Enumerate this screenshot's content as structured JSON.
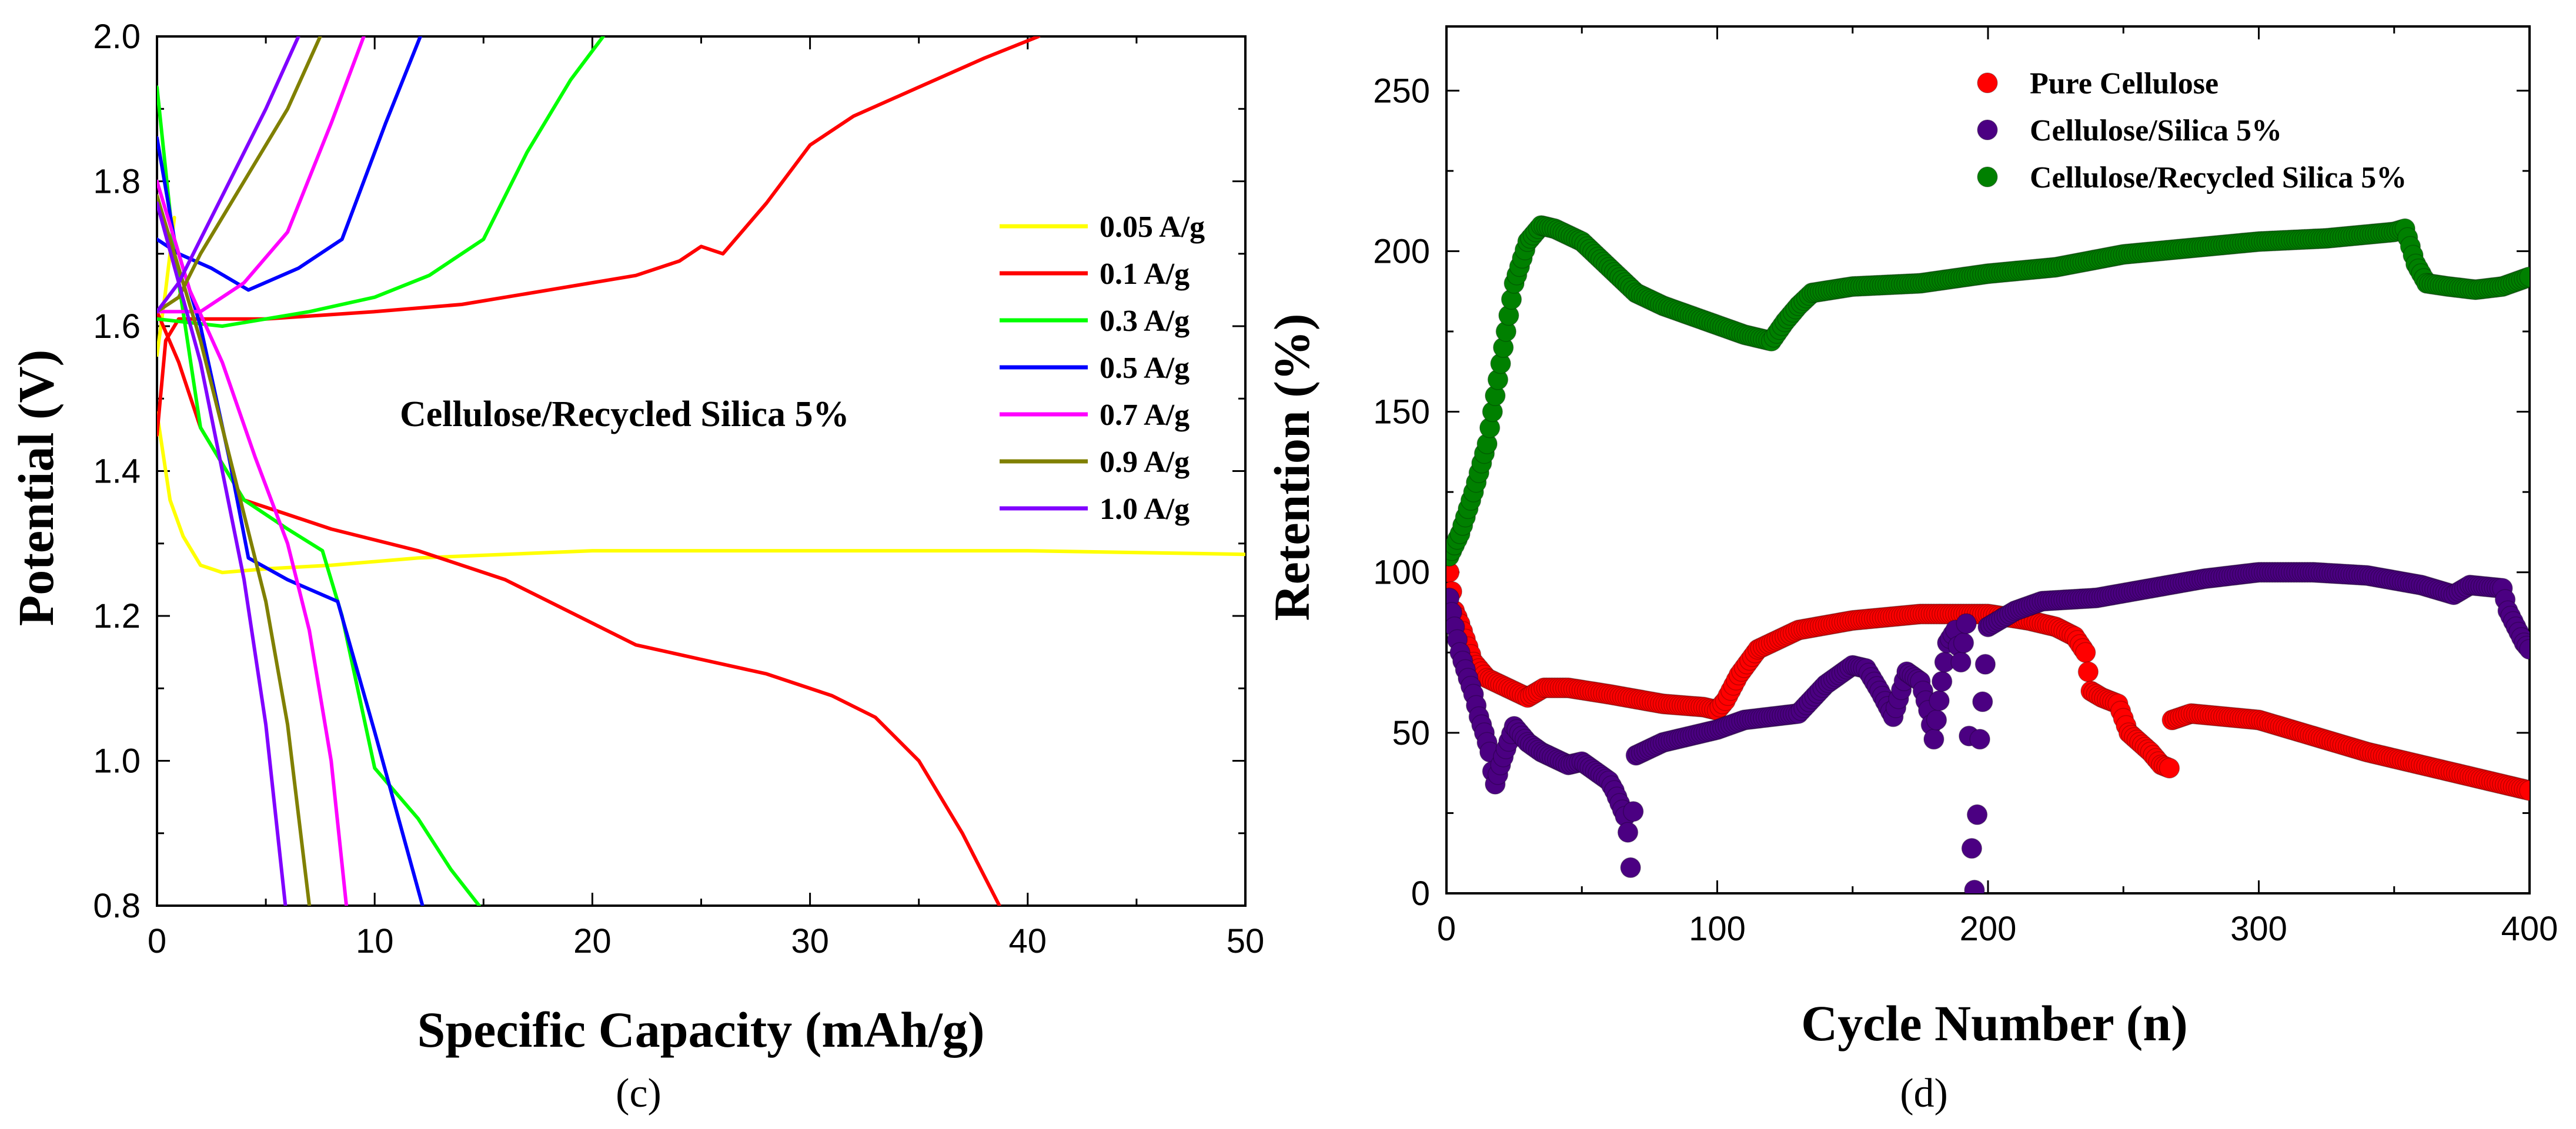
{
  "chart_data": [
    {
      "type": "line",
      "panel_label": "(c)",
      "xlabel": "Specific Capacity (mAh/g)",
      "ylabel": "Potential (V)",
      "xlim": [
        0,
        50
      ],
      "ylim": [
        0.8,
        2.0
      ],
      "x_ticks": [
        0,
        10,
        20,
        30,
        40,
        50
      ],
      "y_ticks": [
        0.8,
        1.0,
        1.2,
        1.4,
        1.6,
        1.8,
        2.0
      ],
      "annotation": "Cellulose/Recycled Silica 5%",
      "legend_position": "center-right",
      "series": [
        {
          "name": "0.05 A/g",
          "color": "#ffff00",
          "points": [
            [
              0,
              1.48
            ],
            [
              0.6,
              1.36
            ],
            [
              1.2,
              1.31
            ],
            [
              2,
              1.27
            ],
            [
              3,
              1.26
            ],
            [
              5,
              1.265
            ],
            [
              8,
              1.27
            ],
            [
              12,
              1.28
            ],
            [
              20,
              1.29
            ],
            [
              30,
              1.29
            ],
            [
              40,
              1.29
            ],
            [
              50,
              1.285
            ]
          ],
          "points2": [
            [
              0,
              1.56
            ],
            [
              0.4,
              1.65
            ],
            [
              0.8,
              1.75
            ]
          ]
        },
        {
          "name": "0.1 A/g",
          "color": "#ff0000",
          "points": [
            [
              0,
              1.62
            ],
            [
              1,
              1.55
            ],
            [
              2,
              1.46
            ],
            [
              4,
              1.36
            ],
            [
              6,
              1.34
            ],
            [
              8,
              1.32
            ],
            [
              12,
              1.29
            ],
            [
              16,
              1.25
            ],
            [
              20,
              1.19
            ],
            [
              22,
              1.16
            ],
            [
              25,
              1.14
            ],
            [
              28,
              1.12
            ],
            [
              31,
              1.09
            ],
            [
              33,
              1.06
            ],
            [
              35,
              1.0
            ],
            [
              37,
              0.9
            ],
            [
              38.7,
              0.8
            ]
          ],
          "points2": [
            [
              0,
              1.45
            ],
            [
              0.4,
              1.58
            ],
            [
              1,
              1.61
            ],
            [
              5,
              1.61
            ],
            [
              10,
              1.62
            ],
            [
              14,
              1.63
            ],
            [
              18,
              1.65
            ],
            [
              22,
              1.67
            ],
            [
              24,
              1.69
            ],
            [
              25,
              1.71
            ],
            [
              26,
              1.7
            ],
            [
              28,
              1.77
            ],
            [
              30,
              1.85
            ],
            [
              32,
              1.89
            ],
            [
              35,
              1.93
            ],
            [
              38,
              1.97
            ],
            [
              40.5,
              2.0
            ]
          ]
        },
        {
          "name": "0.3 A/g",
          "color": "#00ff00",
          "points": [
            [
              0,
              1.93
            ],
            [
              0.8,
              1.7
            ],
            [
              2,
              1.46
            ],
            [
              4,
              1.36
            ],
            [
              6,
              1.32
            ],
            [
              7.6,
              1.29
            ],
            [
              8.5,
              1.2
            ],
            [
              10,
              0.99
            ],
            [
              12,
              0.92
            ],
            [
              13.5,
              0.85
            ],
            [
              14.8,
              0.8
            ]
          ],
          "points2": [
            [
              0,
              1.61
            ],
            [
              3,
              1.6
            ],
            [
              7,
              1.62
            ],
            [
              10,
              1.64
            ],
            [
              12.5,
              1.67
            ],
            [
              15,
              1.72
            ],
            [
              17,
              1.84
            ],
            [
              19,
              1.94
            ],
            [
              20.5,
              2.0
            ]
          ]
        },
        {
          "name": "0.5 A/g",
          "color": "#0000ff",
          "points": [
            [
              0,
              1.86
            ],
            [
              0.8,
              1.72
            ],
            [
              2,
              1.6
            ],
            [
              3.3,
              1.42
            ],
            [
              4.2,
              1.28
            ],
            [
              6,
              1.25
            ],
            [
              8.3,
              1.22
            ],
            [
              10,
              1.04
            ],
            [
              12.2,
              0.8
            ]
          ],
          "points2": [
            [
              0,
              1.72
            ],
            [
              1,
              1.7
            ],
            [
              2.5,
              1.68
            ],
            [
              4.2,
              1.65
            ],
            [
              6.5,
              1.68
            ],
            [
              8.5,
              1.72
            ],
            [
              10.5,
              1.88
            ],
            [
              12.1,
              2.0
            ]
          ]
        },
        {
          "name": "0.7 A/g",
          "color": "#ff00ff",
          "points": [
            [
              0,
              1.8
            ],
            [
              1.5,
              1.65
            ],
            [
              3,
              1.55
            ],
            [
              4.5,
              1.42
            ],
            [
              6,
              1.3
            ],
            [
              7,
              1.18
            ],
            [
              8,
              1.0
            ],
            [
              8.7,
              0.8
            ]
          ],
          "points2": [
            [
              0,
              1.62
            ],
            [
              2,
              1.62
            ],
            [
              4,
              1.66
            ],
            [
              6,
              1.73
            ],
            [
              8,
              1.88
            ],
            [
              9.5,
              2.0
            ]
          ]
        },
        {
          "name": "0.9 A/g",
          "color": "#808000",
          "points": [
            [
              0,
              1.78
            ],
            [
              1,
              1.68
            ],
            [
              2,
              1.58
            ],
            [
              3.5,
              1.4
            ],
            [
              5,
              1.22
            ],
            [
              6,
              1.05
            ],
            [
              7,
              0.8
            ]
          ],
          "points2": [
            [
              0,
              1.62
            ],
            [
              1,
              1.64
            ],
            [
              2,
              1.7
            ],
            [
              4,
              1.8
            ],
            [
              6,
              1.9
            ],
            [
              7.5,
              2.0
            ]
          ]
        },
        {
          "name": "1.0 A/g",
          "color": "#8000ff",
          "points": [
            [
              0,
              1.77
            ],
            [
              1,
              1.66
            ],
            [
              2,
              1.55
            ],
            [
              3,
              1.4
            ],
            [
              4,
              1.25
            ],
            [
              5,
              1.05
            ],
            [
              5.9,
              0.8
            ]
          ],
          "points2": [
            [
              0,
              1.62
            ],
            [
              1,
              1.66
            ],
            [
              2,
              1.72
            ],
            [
              3,
              1.78
            ],
            [
              5,
              1.9
            ],
            [
              6.5,
              2.0
            ]
          ]
        }
      ]
    },
    {
      "type": "scatter",
      "panel_label": "(d)",
      "xlabel": "Cycle Number (n)",
      "ylabel": "Retention (%)",
      "xlim": [
        0,
        400
      ],
      "ylim": [
        0,
        270
      ],
      "x_ticks": [
        0,
        100,
        200,
        300,
        400
      ],
      "y_ticks": [
        0,
        50,
        100,
        150,
        200,
        250
      ],
      "legend_position": "top-right",
      "series": [
        {
          "name": "Pure Cellulose",
          "color": "#ff0000",
          "points": [
            [
              1,
              100
            ],
            [
              3,
              88
            ],
            [
              5,
              84
            ],
            [
              10,
              72
            ],
            [
              15,
              67
            ],
            [
              20,
              65
            ],
            [
              25,
              63
            ],
            [
              30,
              61
            ],
            [
              36,
              64
            ],
            [
              45,
              64
            ],
            [
              60,
              62
            ],
            [
              80,
              59
            ],
            [
              95,
              58
            ],
            [
              100,
              57
            ],
            [
              103,
              60
            ],
            [
              108,
              68
            ],
            [
              115,
              76
            ],
            [
              130,
              82
            ],
            [
              150,
              85
            ],
            [
              175,
              87
            ],
            [
              200,
              87
            ],
            [
              215,
              85
            ],
            [
              225,
              83
            ],
            [
              232,
              80
            ],
            [
              236,
              75
            ],
            [
              238,
              63
            ],
            [
              242,
              61
            ],
            [
              248,
              59
            ],
            [
              252,
              50
            ],
            [
              256,
              47
            ],
            [
              260,
              44
            ],
            [
              264,
              40
            ],
            [
              267,
              39
            ],
            [
              268,
              54
            ],
            [
              275,
              56
            ],
            [
              300,
              54
            ],
            [
              320,
              49
            ],
            [
              340,
              44
            ],
            [
              360,
              40
            ],
            [
              380,
              36
            ],
            [
              400,
              32
            ]
          ]
        },
        {
          "name": "Cellulose/Silica 5%",
          "color": "#4b0082",
          "points": [
            [
              1,
              92
            ],
            [
              3,
              83
            ],
            [
              5,
              75
            ],
            [
              8,
              67
            ],
            [
              10,
              62
            ],
            [
              12,
              55
            ],
            [
              14,
              50
            ],
            [
              16,
              44
            ],
            [
              17,
              38
            ],
            [
              18,
              34
            ],
            [
              20,
              40
            ],
            [
              22,
              45
            ],
            [
              25,
              52
            ],
            [
              30,
              47
            ],
            [
              35,
              44
            ],
            [
              40,
              42
            ],
            [
              45,
              40
            ],
            [
              50,
              41
            ],
            [
              55,
              38
            ],
            [
              60,
              35
            ],
            [
              62,
              32
            ],
            [
              64,
              28
            ],
            [
              66,
              24
            ],
            [
              67,
              19
            ],
            [
              68,
              8
            ],
            [
              70,
              43
            ],
            [
              80,
              47
            ],
            [
              90,
              49
            ],
            [
              100,
              51
            ],
            [
              110,
              54
            ],
            [
              120,
              55
            ],
            [
              130,
              56
            ],
            [
              140,
              65
            ],
            [
              150,
              71
            ],
            [
              155,
              70
            ],
            [
              160,
              63
            ],
            [
              165,
              55
            ],
            [
              170,
              69
            ],
            [
              175,
              66
            ],
            [
              178,
              57
            ],
            [
              180,
              48
            ],
            [
              185,
              78
            ],
            [
              188,
              82
            ],
            [
              190,
              72
            ],
            [
              192,
              84
            ],
            [
              194,
              14
            ],
            [
              195,
              1
            ],
            [
              197,
              48
            ],
            [
              200,
              83
            ],
            [
              210,
              88
            ],
            [
              220,
              91
            ],
            [
              240,
              92
            ],
            [
              260,
              95
            ],
            [
              280,
              98
            ],
            [
              300,
              100
            ],
            [
              320,
              100
            ],
            [
              340,
              99
            ],
            [
              360,
              96
            ],
            [
              372,
              93
            ],
            [
              378,
              96
            ],
            [
              390,
              95
            ],
            [
              392,
              88
            ],
            [
              395,
              83
            ],
            [
              398,
              78
            ],
            [
              400,
              76
            ]
          ]
        },
        {
          "name": "Cellulose/Recycled Silica 5%",
          "color": "#008000",
          "points": [
            [
              1,
              105
            ],
            [
              5,
              112
            ],
            [
              10,
              125
            ],
            [
              15,
              140
            ],
            [
              20,
              165
            ],
            [
              25,
              190
            ],
            [
              30,
              203
            ],
            [
              35,
              208
            ],
            [
              40,
              207
            ],
            [
              50,
              203
            ],
            [
              60,
              195
            ],
            [
              70,
              187
            ],
            [
              80,
              183
            ],
            [
              90,
              180
            ],
            [
              100,
              177
            ],
            [
              110,
              174
            ],
            [
              120,
              172
            ],
            [
              125,
              178
            ],
            [
              130,
              183
            ],
            [
              135,
              187
            ],
            [
              150,
              189
            ],
            [
              175,
              190
            ],
            [
              200,
              193
            ],
            [
              225,
              195
            ],
            [
              250,
              199
            ],
            [
              275,
              201
            ],
            [
              300,
              203
            ],
            [
              325,
              204
            ],
            [
              350,
              206
            ],
            [
              354,
              207
            ],
            [
              358,
              196
            ],
            [
              362,
              190
            ],
            [
              370,
              189
            ],
            [
              380,
              188
            ],
            [
              390,
              189
            ],
            [
              400,
              192
            ]
          ]
        }
      ]
    }
  ]
}
